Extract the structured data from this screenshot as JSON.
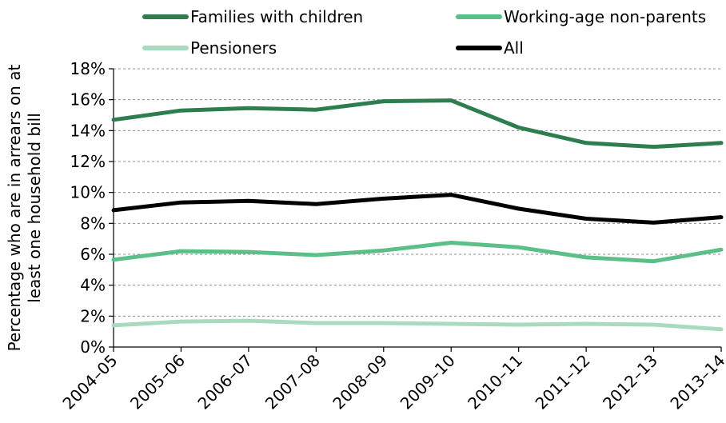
{
  "chart_data": {
    "type": "line",
    "categories": [
      "2004–05",
      "2005–06",
      "2006–07",
      "2007–08",
      "2008–09",
      "2009–10",
      "2010–11",
      "2011–12",
      "2012–13",
      "2013–14"
    ],
    "ylabel_line1": "Percentage who are  in arrears on at",
    "ylabel_line2": "least one household bill",
    "ylim": [
      0,
      18
    ],
    "yticks": [
      "0%",
      "2%",
      "4%",
      "6%",
      "8%",
      "10%",
      "12%",
      "14%",
      "16%",
      "18%"
    ],
    "grid": "horizontal dashed",
    "legend_position": "top",
    "series": [
      {
        "name": "Families with children",
        "color": "#2e7d4f",
        "values": [
          14.7,
          15.3,
          15.45,
          15.35,
          15.9,
          15.95,
          14.2,
          13.2,
          12.95,
          13.2
        ]
      },
      {
        "name": "Working-age non-parents",
        "color": "#5cbf87",
        "values": [
          5.65,
          6.2,
          6.15,
          5.95,
          6.25,
          6.75,
          6.45,
          5.8,
          5.55,
          6.3
        ]
      },
      {
        "name": "Pensioners",
        "color": "#a8dbbd",
        "values": [
          1.4,
          1.65,
          1.7,
          1.55,
          1.55,
          1.5,
          1.45,
          1.5,
          1.45,
          1.15
        ]
      },
      {
        "name": "All",
        "color": "#000000",
        "values": [
          8.85,
          9.35,
          9.45,
          9.25,
          9.6,
          9.85,
          8.95,
          8.3,
          8.05,
          8.4
        ]
      }
    ]
  }
}
